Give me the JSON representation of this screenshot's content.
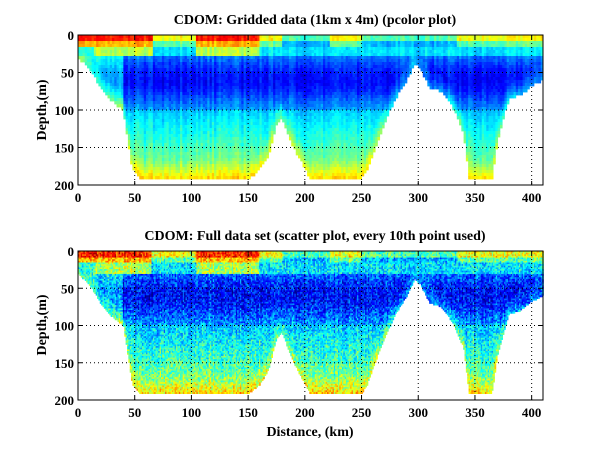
{
  "chart_data": [
    {
      "type": "heatmap",
      "title": "CDOM: Gridded data (1km x 4m) (pcolor plot)",
      "xlabel": "",
      "ylabel": "Depth,(m)",
      "xlim": [
        0,
        410
      ],
      "ylim": [
        200,
        0
      ],
      "y_reversed": true,
      "xticks": [
        0,
        50,
        100,
        150,
        200,
        250,
        300,
        350,
        400
      ],
      "yticks": [
        0,
        50,
        100,
        150,
        200
      ],
      "grid": true,
      "grid_style": "dotted",
      "colormap": "jet",
      "render": "pcolor",
      "cell_size_x_km": 1,
      "cell_size_y_m": 4
    },
    {
      "type": "heatmap",
      "title": "CDOM: Full data set (scatter plot, every 10th point used)",
      "xlabel": "Distance, (km)",
      "ylabel": "Depth,(m)",
      "xlim": [
        0,
        410
      ],
      "ylim": [
        200,
        0
      ],
      "y_reversed": true,
      "xticks": [
        0,
        50,
        100,
        150,
        200,
        250,
        300,
        350,
        400
      ],
      "yticks": [
        0,
        50,
        100,
        150,
        200
      ],
      "grid": true,
      "grid_style": "dotted",
      "colormap": "jet",
      "render": "scatter"
    }
  ],
  "bottom_profile": {
    "distance_km": [
      0,
      10,
      20,
      30,
      40,
      48,
      55,
      100,
      150,
      160,
      168,
      175,
      180,
      190,
      205,
      210,
      250,
      255,
      262,
      270,
      280,
      290,
      297,
      302,
      310,
      320,
      330,
      340,
      345,
      365,
      370,
      380,
      390,
      400,
      410
    ],
    "max_depth_m": [
      30,
      45,
      70,
      88,
      100,
      180,
      192,
      192,
      192,
      180,
      160,
      118,
      110,
      150,
      192,
      192,
      192,
      180,
      150,
      118,
      85,
      60,
      38,
      45,
      70,
      75,
      95,
      130,
      192,
      192,
      140,
      85,
      80,
      68,
      60
    ]
  },
  "field_model": {
    "surface_high_ranges_km": [
      [
        0,
        65
      ],
      [
        105,
        160
      ]
    ],
    "surface_moderate_ranges_km": [
      [
        65,
        105
      ],
      [
        160,
        180
      ],
      [
        335,
        410
      ],
      [
        222,
        250
      ]
    ],
    "deep_min_centers_km": [
      130,
      230,
      350
    ],
    "value_range": [
      0,
      1
    ]
  },
  "colors": {
    "colormap_stops": [
      "#00008f",
      "#0000ff",
      "#00ffff",
      "#ffff00",
      "#ff0000",
      "#800000"
    ],
    "axis": "#000000",
    "background": "#ffffff"
  }
}
